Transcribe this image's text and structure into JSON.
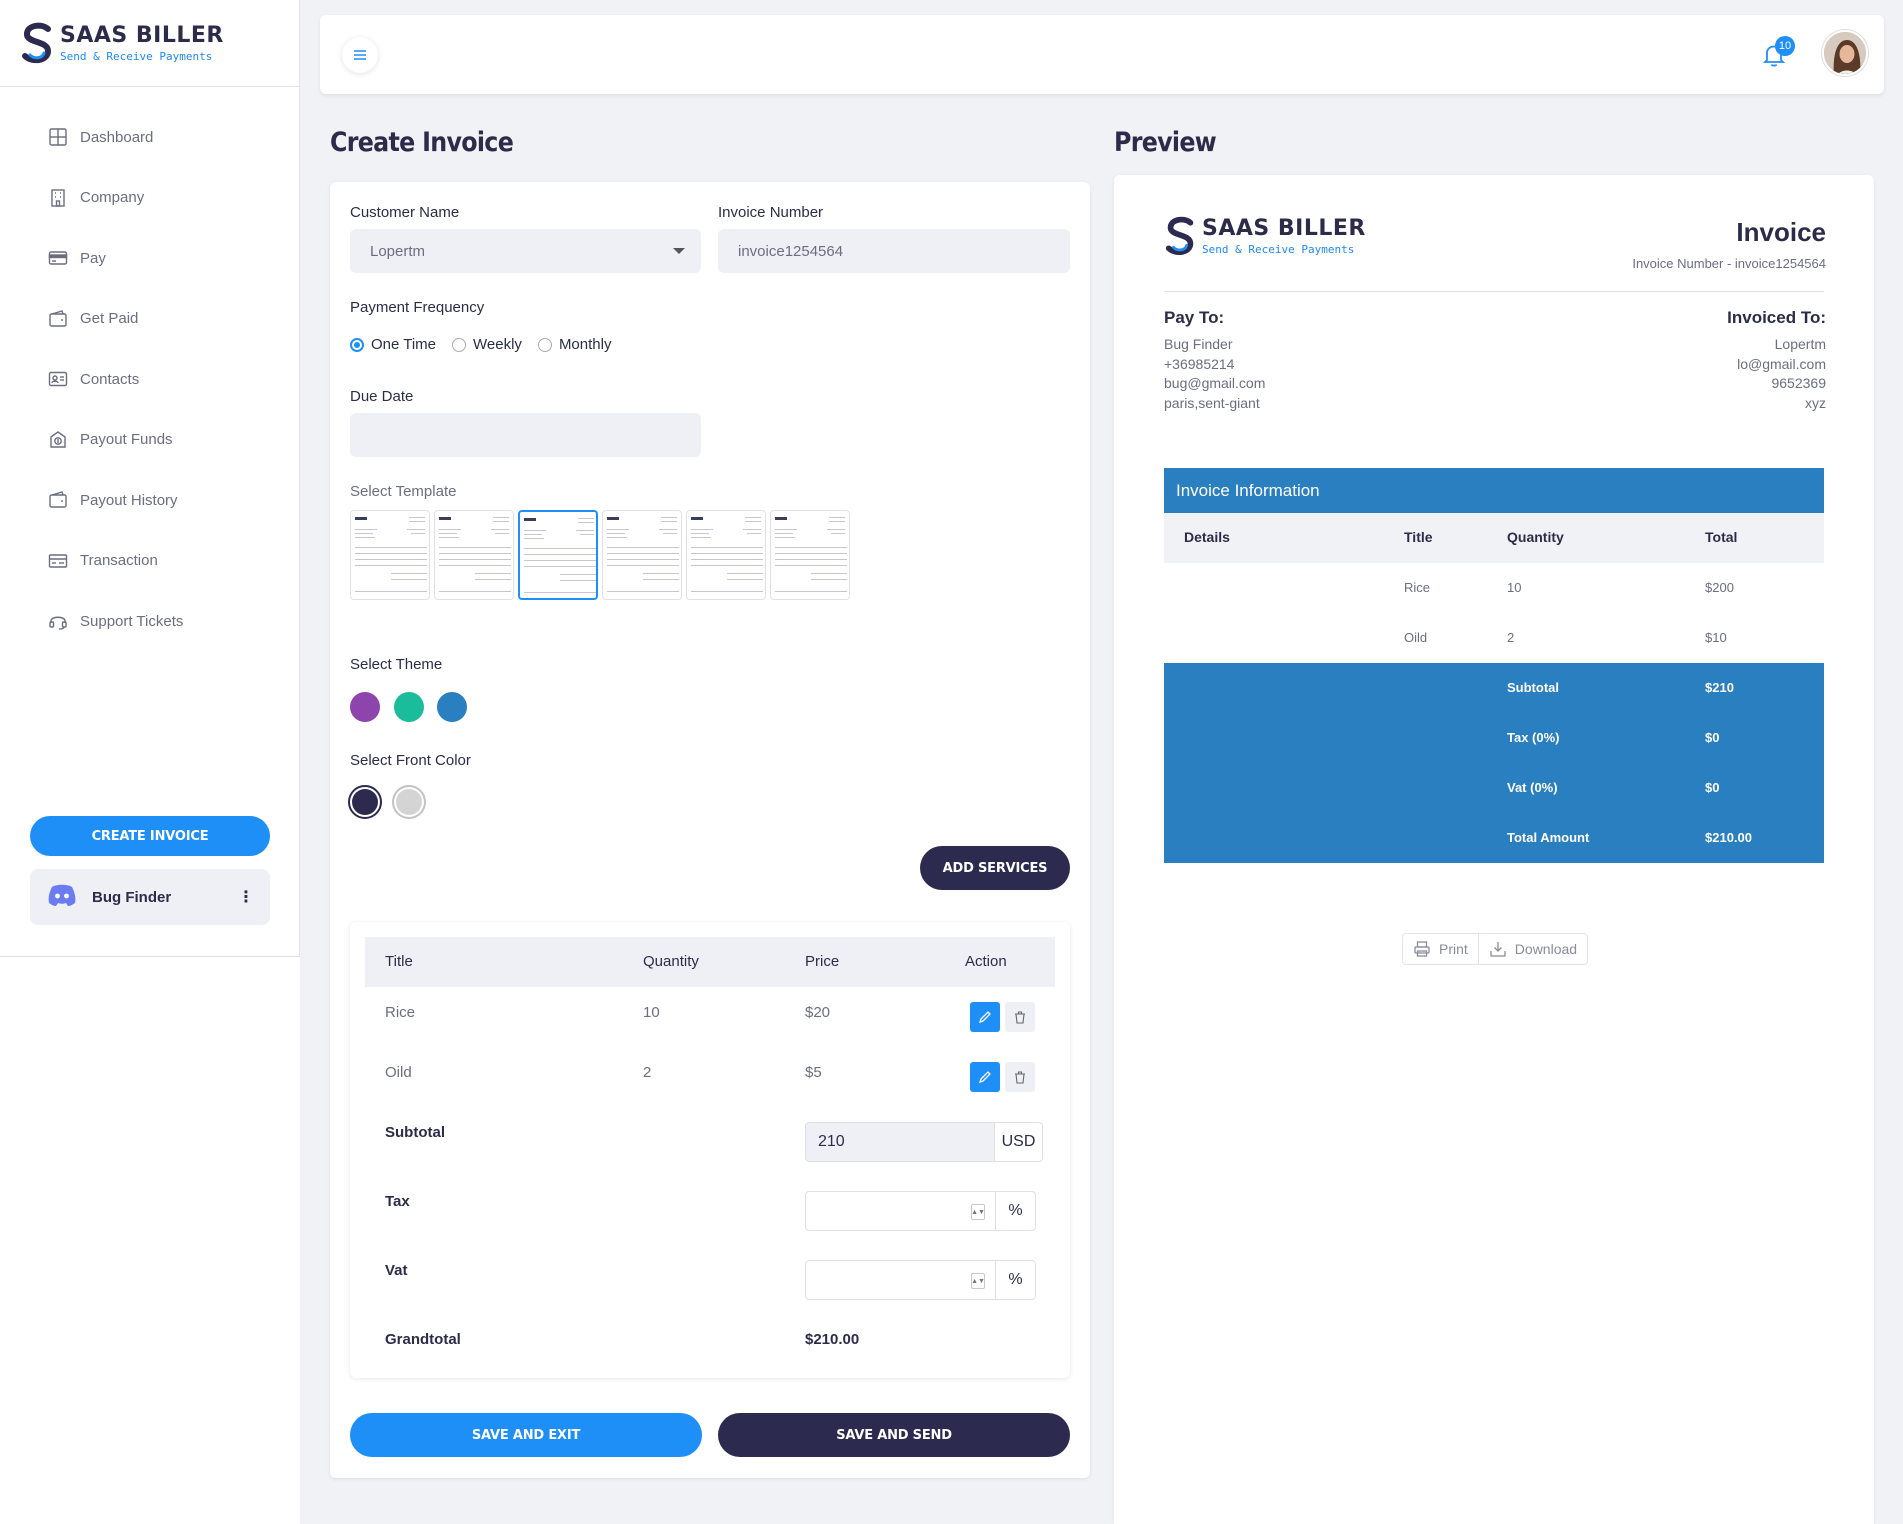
{
  "brand": {
    "title": "SAAS BILLER",
    "subtitle": "Send & Receive Payments",
    "accent": "#1e8ff7",
    "dark": "#2c2b4f"
  },
  "sidebar": {
    "items": [
      {
        "label": "Dashboard",
        "icon": "grid-icon"
      },
      {
        "label": "Company",
        "icon": "building-icon"
      },
      {
        "label": "Pay",
        "icon": "credit-card-icon"
      },
      {
        "label": "Get Paid",
        "icon": "wallet-icon"
      },
      {
        "label": "Contacts",
        "icon": "contact-card-icon"
      },
      {
        "label": "Payout Funds",
        "icon": "payout-icon"
      },
      {
        "label": "Payout History",
        "icon": "wallet-history-icon"
      },
      {
        "label": "Transaction",
        "icon": "transaction-icon"
      },
      {
        "label": "Support Tickets",
        "icon": "headset-icon"
      }
    ],
    "create_label": "CREATE INVOICE",
    "user_name": "Bug Finder"
  },
  "topbar": {
    "notification_count": "10"
  },
  "form": {
    "title": "Create Invoice",
    "customer_label": "Customer Name",
    "customer_value": "Lopertm",
    "invoice_label": "Invoice Number",
    "invoice_value": "invoice1254564",
    "frequency_label": "Payment Frequency",
    "frequency_options": [
      "One Time",
      "Weekly",
      "Monthly"
    ],
    "frequency_selected": "One Time",
    "due_label": "Due Date",
    "due_value": "",
    "template_label": "Select Template",
    "template_count": 6,
    "template_selected": 3,
    "theme_label": "Select Theme",
    "theme_colors": [
      "#8e44ad",
      "#1abc9c",
      "#2a7fc0"
    ],
    "font_label": "Select Front Color",
    "font_colors": [
      "#2c2b4f",
      "#d4d4d4"
    ],
    "font_selected": 1,
    "add_services_label": "ADD SERVICES",
    "services": {
      "headers": [
        "Title",
        "Quantity",
        "Price",
        "Action"
      ],
      "rows": [
        {
          "title": "Rice",
          "quantity": "10",
          "price": "$20"
        },
        {
          "title": "Oild",
          "quantity": "2",
          "price": "$5"
        }
      ],
      "subtotal_label": "Subtotal",
      "subtotal_value": "210",
      "subtotal_unit": "USD",
      "tax_label": "Tax",
      "tax_value": "",
      "tax_unit": "%",
      "vat_label": "Vat",
      "vat_value": "",
      "vat_unit": "%",
      "grandtotal_label": "Grandtotal",
      "grandtotal_value": "$210.00"
    },
    "save_exit_label": "SAVE AND EXIT",
    "save_send_label": "SAVE AND SEND"
  },
  "preview": {
    "title": "Preview",
    "invoice_title": "Invoice",
    "invoice_number_line": "Invoice Number - invoice1254564",
    "pay_to_label": "Pay To:",
    "pay_to": [
      "Bug Finder",
      "+36985214",
      "bug@gmail.com",
      "paris,sent-giant"
    ],
    "invoiced_to_label": "Invoiced To:",
    "invoiced_to": [
      "Lopertm",
      "lo@gmail.com",
      "9652369",
      "xyz"
    ],
    "table_title": "Invoice Information",
    "headers": [
      "Details",
      "Title",
      "Quantity",
      "Total"
    ],
    "rows": [
      {
        "details": "",
        "title": "Rice",
        "quantity": "10",
        "total": "$200"
      },
      {
        "details": "",
        "title": "Oild",
        "quantity": "2",
        "total": "$10"
      }
    ],
    "totals": [
      {
        "label": "Subtotal",
        "value": "$210"
      },
      {
        "label": "Tax (0%)",
        "value": "$0"
      },
      {
        "label": "Vat (0%)",
        "value": "$0"
      },
      {
        "label": "Total Amount",
        "value": "$210.00"
      }
    ],
    "print_label": "Print",
    "download_label": "Download",
    "theme_color": "#2a7fc0"
  }
}
